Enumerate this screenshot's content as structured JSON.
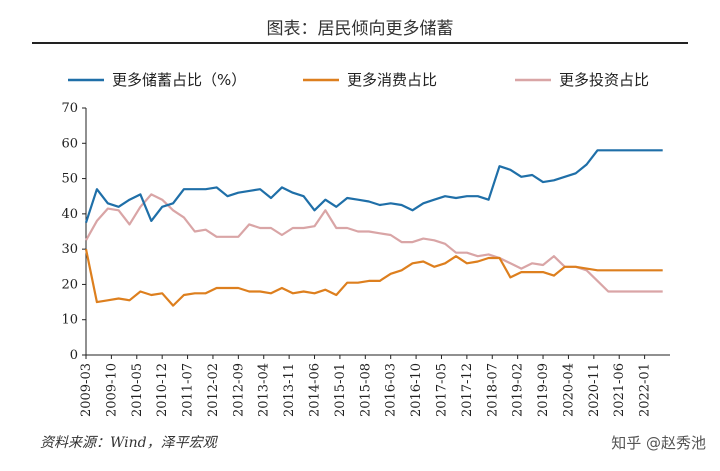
{
  "header": {
    "title": "图表：居民倾向更多储蓄"
  },
  "source": "资料来源：Wind，泽平宏观",
  "watermark": "知乎 @赵秀池",
  "chart_data": {
    "type": "line",
    "title": "图表：居民倾向更多储蓄",
    "xlabel": "",
    "ylabel": "",
    "ylim": [
      0,
      70
    ],
    "yticks": [
      0,
      10,
      20,
      30,
      40,
      50,
      60,
      70
    ],
    "grid": false,
    "legend_position": "top",
    "x_tick_labels": [
      "2009-03",
      "2009-10",
      "2010-05",
      "2010-12",
      "2011-07",
      "2012-02",
      "2012-09",
      "2013-04",
      "2013-11",
      "2014-06",
      "2015-01",
      "2015-08",
      "2016-03",
      "2016-10",
      "2017-05",
      "2017-12",
      "2018-07",
      "2019-02",
      "2019-09",
      "2020-04",
      "2020-11",
      "2021-06",
      "2022-01"
    ],
    "x": [
      "2009-03",
      "2009-06",
      "2009-09",
      "2009-12",
      "2010-03",
      "2010-06",
      "2010-09",
      "2010-12",
      "2011-03",
      "2011-06",
      "2011-09",
      "2011-12",
      "2012-03",
      "2012-06",
      "2012-09",
      "2012-12",
      "2013-03",
      "2013-06",
      "2013-09",
      "2013-12",
      "2014-03",
      "2014-06",
      "2014-09",
      "2014-12",
      "2015-03",
      "2015-06",
      "2015-09",
      "2015-12",
      "2016-03",
      "2016-06",
      "2016-09",
      "2016-12",
      "2017-03",
      "2017-06",
      "2017-09",
      "2017-12",
      "2018-03",
      "2018-06",
      "2018-09",
      "2018-12",
      "2019-03",
      "2019-06",
      "2019-09",
      "2019-12",
      "2020-03",
      "2020-06",
      "2020-09",
      "2020-12",
      "2021-03",
      "2021-06",
      "2021-09",
      "2021-12",
      "2022-03",
      "2022-06"
    ],
    "series": [
      {
        "name": "更多储蓄占比（%）",
        "color": "#1f6fa8",
        "values": [
          37.5,
          47,
          43,
          42,
          44,
          45.5,
          38,
          42,
          43,
          47,
          47,
          47,
          47.5,
          45,
          46,
          46.5,
          47,
          44.5,
          47.5,
          46,
          45,
          41,
          44,
          42,
          44.5,
          44,
          43.5,
          42.5,
          43,
          42.5,
          41,
          43,
          44,
          45,
          44.5,
          45,
          45,
          44,
          53.5,
          52.5,
          50.5,
          51,
          49,
          49.5,
          50.5,
          51.5,
          54,
          58,
          58,
          58,
          58,
          58,
          58,
          58
        ]
      },
      {
        "name": "更多消费占比",
        "color": "#dd7f1e",
        "values": [
          30,
          15,
          15.5,
          16,
          15.5,
          18,
          17,
          17.5,
          14,
          17,
          17.5,
          17.5,
          19,
          19,
          19,
          18,
          18,
          17.5,
          19,
          17.5,
          18,
          17.5,
          18.5,
          17,
          20.5,
          20.5,
          21,
          21,
          23,
          24,
          26,
          26.5,
          25,
          26,
          28,
          26,
          26.5,
          27.5,
          27.5,
          22,
          23.5,
          23.5,
          23.5,
          22.5,
          25,
          25,
          24.5,
          24,
          24,
          24,
          24,
          24,
          24,
          24
        ]
      },
      {
        "name": "更多投资占比",
        "color": "#d9a5a6",
        "values": [
          32.5,
          38,
          41.5,
          41,
          37,
          42,
          45.5,
          44,
          41,
          39,
          35,
          35.5,
          33.5,
          33.5,
          33.5,
          37,
          36,
          36,
          34,
          36,
          36,
          36.5,
          41,
          36,
          36,
          35,
          35,
          34.5,
          34,
          32,
          32,
          33,
          32.5,
          31.5,
          29,
          29,
          28,
          28.5,
          27.5,
          26,
          24.5,
          26,
          25.5,
          28,
          25,
          25,
          24,
          21,
          18,
          18,
          18,
          18,
          18,
          18
        ]
      }
    ]
  }
}
